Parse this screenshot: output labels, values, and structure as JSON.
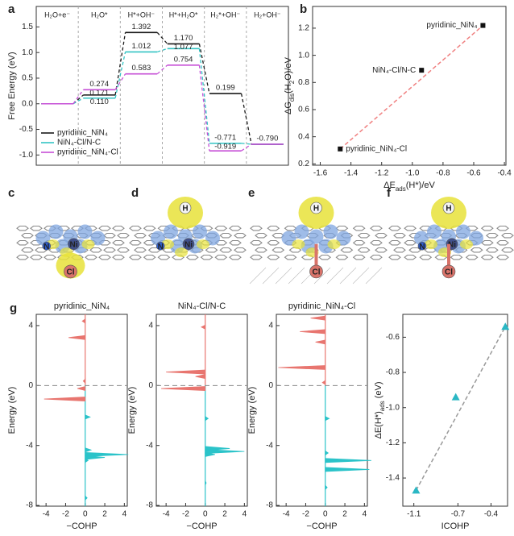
{
  "panel_labels": [
    "a",
    "b",
    "c",
    "d",
    "e",
    "f",
    "g"
  ],
  "structures": [
    {
      "atoms": [
        "N",
        "Ni",
        "Cl"
      ]
    },
    {
      "atoms": [
        "H",
        "N",
        "Ni"
      ]
    },
    {
      "atoms": [
        "H",
        "Cl"
      ]
    },
    {
      "atoms": [
        "H",
        "N",
        "Ni",
        "Cl"
      ]
    }
  ],
  "chart_data": [
    {
      "type": "step",
      "ylabel": "Free Energy (eV)",
      "legend": "lower left",
      "categories": [
        "H₂O+e⁻",
        "H₂O*",
        "H*+OH⁻",
        "H*+H₂O*",
        "H₂*+OH⁻",
        "H₂+OH⁻"
      ],
      "series": [
        {
          "name": "pyridinic_NiN₄",
          "color": "#1a1a1a",
          "values": [
            0,
            0.171,
            1.392,
            1.17,
            0.199,
            -0.79
          ],
          "value_labels": [
            null,
            "0.171",
            "1.392",
            "1.170",
            "0.199",
            null
          ]
        },
        {
          "name": "NiN₄-Cl/N-C",
          "color": "#33c4c4",
          "values": [
            0,
            0.11,
            1.012,
            1.077,
            -0.771,
            -0.79
          ],
          "value_labels": [
            null,
            "0.110",
            "1.012",
            "1.077",
            "-0.771",
            null
          ]
        },
        {
          "name": "pyridinic_NiN₄-Cl",
          "color": "#c64fd6",
          "values": [
            0,
            0.274,
            0.583,
            0.754,
            -0.919,
            -0.79
          ],
          "value_labels": [
            null,
            "0.274",
            "0.583",
            "0.754",
            "-0.919",
            "-0.790"
          ]
        }
      ],
      "ylim": [
        -1.2,
        1.9
      ],
      "yticks": [
        {
          "value": -1,
          "label": "-1.0"
        },
        -0.5,
        {
          "value": 0,
          "label": "0.0"
        },
        0.5,
        {
          "value": 1,
          "label": "1.0"
        },
        1.5
      ]
    },
    {
      "type": "scatter",
      "marker": "square",
      "color": "#111111",
      "line_color": "#f08080",
      "xlabel": [
        "ΔE",
        "ads",
        "(H*)/eV"
      ],
      "ylabel": [
        "ΔG",
        "dis",
        "(H",
        "2",
        "O)/eV"
      ],
      "x": [
        -1.47,
        -0.94,
        -0.54
      ],
      "values": [
        0.31,
        0.89,
        1.22
      ],
      "point_labels": [
        "pyridinic_NiN₄-Cl",
        "NiN₄-Cl/N-C",
        "pyridinic_NiN₄"
      ],
      "xlim": [
        -1.65,
        -0.39
      ],
      "xticks": [
        -1.6,
        -1.4,
        -1.2,
        {
          "value": -1,
          "label": "-1.0"
        },
        -0.8,
        -0.6,
        -0.4
      ],
      "ylim": [
        0.19,
        1.36
      ],
      "yticks": [
        0.2,
        0.4,
        0.6,
        0.8,
        {
          "value": 1,
          "label": "1.0"
        },
        1.2
      ]
    },
    {
      "type": "bar",
      "orientation": "horizontal",
      "title": "pyridinic_NiN₄",
      "xlabel": "−COHP",
      "ylabel": "Energy (eV)",
      "negative_color": "#e8756f",
      "positive_color": "#2bc3c9",
      "energy": [
        4.3,
        3.2,
        0.3,
        -0.2,
        -0.9,
        -2.1,
        -4.3,
        -4.6,
        -4.8,
        -5.0,
        -7.5
      ],
      "values": [
        -0.3,
        -1.7,
        -0.2,
        -0.8,
        -4.2,
        0.5,
        0.6,
        4.4,
        2.0,
        0.3,
        0.2
      ],
      "xlim": [
        -5,
        4.3
      ],
      "xticks": [
        -4,
        -2,
        0,
        2,
        4
      ],
      "ylim": [
        -8.05,
        4.75
      ],
      "yticks": [
        -8,
        -4,
        0,
        4
      ]
    },
    {
      "type": "bar",
      "orientation": "horizontal",
      "title": "NiN₄-Cl/N-C",
      "xlabel": "−COHP",
      "ylabel": "Energy (eV)",
      "negative_color": "#e8756f",
      "positive_color": "#2bc3c9",
      "energy": [
        3.9,
        0.9,
        0.6,
        -0.2,
        -2.2,
        -4.2,
        -4.4,
        -4.6,
        -6.5
      ],
      "values": [
        -0.4,
        -4.0,
        -1.0,
        -4.5,
        0.3,
        2.5,
        4.0,
        1.0,
        0.1
      ],
      "xlim": [
        -5,
        4.3
      ],
      "xticks": [
        -4,
        -2,
        0,
        2,
        4
      ],
      "ylim": [
        -8.05,
        4.75
      ],
      "yticks": [
        -8,
        -4,
        0,
        4
      ]
    },
    {
      "type": "bar",
      "orientation": "horizontal",
      "title": "pyridinic_NiN₄-Cl",
      "xlabel": "−COHP",
      "ylabel": "Energy (eV)",
      "negative_color": "#e8756f",
      "positive_color": "#2bc3c9",
      "energy": [
        4.5,
        3.6,
        2.9,
        1.2,
        0.2,
        -2.2,
        -4.5,
        -5.0,
        -5.6,
        -6.8
      ],
      "values": [
        -1.5,
        -2.6,
        -1.0,
        -4.8,
        -0.3,
        0.4,
        0.3,
        4.7,
        4.5,
        0.2
      ],
      "xlim": [
        -5,
        4.3
      ],
      "xticks": [
        -4,
        -2,
        0,
        2,
        4
      ],
      "ylim": [
        -8.05,
        4.75
      ],
      "yticks": [
        -8,
        -4,
        0,
        4
      ]
    },
    {
      "type": "scatter",
      "marker": "triangle",
      "color": "#2ab7c4",
      "line_color": "#999999",
      "xlabel": "ICOHP",
      "ylabel": [
        "ΔE(H*)",
        "ads",
        " (eV)"
      ],
      "x": [
        -1.08,
        -0.72,
        -0.27
      ],
      "values": [
        -1.47,
        -0.94,
        -0.54
      ],
      "xlim": [
        -1.2,
        -0.25
      ],
      "xticks": [
        -1.1,
        -0.7,
        -0.4
      ],
      "ylim": [
        -1.56,
        -0.47
      ],
      "yticks": [
        -1.4,
        -1.2,
        {
          "value": -1,
          "label": "-1.0"
        },
        -0.8,
        -0.6
      ]
    }
  ]
}
